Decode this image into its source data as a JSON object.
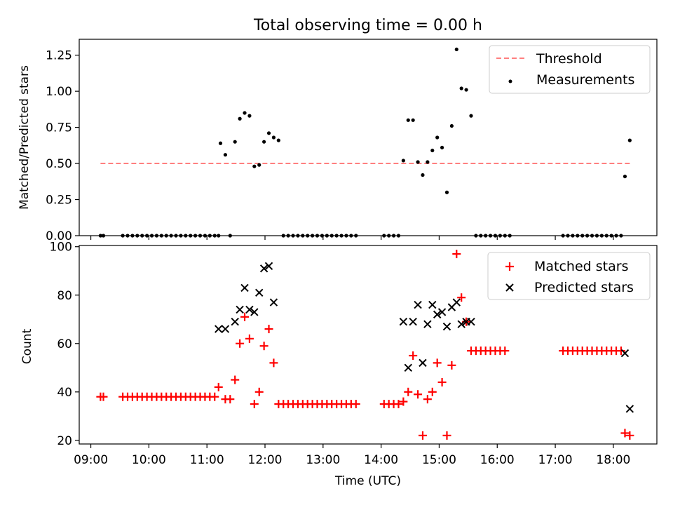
{
  "chart_data": [
    {
      "type": "scatter",
      "title": "Total observing time = 0.00 h",
      "ylabel": "Matched/Predicted stars",
      "xlabel": "",
      "x_range_hours": [
        8.8,
        18.75
      ],
      "ylim": [
        0,
        1.36
      ],
      "y_ticks": [
        0,
        0.25,
        0.5,
        0.75,
        1.0,
        1.25
      ],
      "y_tick_labels": [
        "0.00",
        "0.25",
        "0.50",
        "0.75",
        "1.00",
        "1.25"
      ],
      "legend": [
        "Threshold",
        "Measurements"
      ],
      "legend_position": "top-right",
      "series": [
        {
          "name": "Threshold",
          "kind": "dashed-line",
          "color": "#ff7f7f",
          "x": [
            "09:10",
            "18:17"
          ],
          "y": [
            0.5,
            0.5
          ]
        },
        {
          "name": "Measurements",
          "kind": "points",
          "color": "#000000",
          "x": [
            "09:10",
            "09:13",
            "09:33",
            "09:38",
            "09:43",
            "09:48",
            "09:53",
            "09:58",
            "10:03",
            "10:08",
            "10:13",
            "10:18",
            "10:23",
            "10:28",
            "10:33",
            "10:38",
            "10:43",
            "10:48",
            "10:53",
            "10:58",
            "11:03",
            "11:08",
            "11:12",
            "11:14",
            "11:19",
            "11:24",
            "11:29",
            "11:34",
            "11:39",
            "11:44",
            "11:49",
            "11:54",
            "11:59",
            "12:04",
            "12:09",
            "12:14",
            "12:19",
            "12:24",
            "12:29",
            "12:34",
            "12:39",
            "12:44",
            "12:49",
            "12:54",
            "12:59",
            "13:04",
            "13:09",
            "13:14",
            "13:19",
            "13:24",
            "13:29",
            "13:34",
            "14:03",
            "14:08",
            "14:13",
            "14:18",
            "14:23",
            "14:28",
            "14:33",
            "14:38",
            "14:43",
            "14:48",
            "14:53",
            "14:58",
            "15:03",
            "15:08",
            "15:13",
            "15:18",
            "15:23",
            "15:28",
            "15:33",
            "15:38",
            "15:43",
            "15:48",
            "15:53",
            "15:58",
            "16:03",
            "16:08",
            "16:13",
            "17:08",
            "17:13",
            "17:18",
            "17:23",
            "17:28",
            "17:33",
            "17:38",
            "17:43",
            "17:48",
            "17:53",
            "17:58",
            "18:03",
            "18:08",
            "18:12",
            "18:17"
          ],
          "y": [
            0,
            0,
            0,
            0,
            0,
            0,
            0,
            0,
            0,
            0,
            0,
            0,
            0,
            0,
            0,
            0,
            0,
            0,
            0,
            0,
            0,
            0,
            0,
            0.64,
            0.56,
            0,
            0.65,
            0.81,
            0.85,
            0.83,
            0.48,
            0.49,
            0.65,
            0.71,
            0.68,
            0.66,
            0,
            0,
            0,
            0,
            0,
            0,
            0,
            0,
            0,
            0,
            0,
            0,
            0,
            0,
            0,
            0,
            0,
            0,
            0,
            0,
            0.52,
            0.8,
            0.8,
            0.51,
            0.42,
            0.51,
            0.59,
            0.68,
            0.61,
            0.3,
            0.76,
            1.29,
            1.02,
            1.01,
            0.83,
            0,
            0,
            0,
            0,
            0,
            0,
            0,
            0,
            0,
            0,
            0,
            0,
            0,
            0,
            0,
            0,
            0,
            0,
            0,
            0,
            0,
            0.41,
            0.66
          ]
        }
      ]
    },
    {
      "type": "scatter",
      "title": "",
      "ylabel": "Count",
      "xlabel": "Time (UTC)",
      "x_range_hours": [
        8.8,
        18.75
      ],
      "x_ticks": [
        "09:00",
        "10:00",
        "11:00",
        "12:00",
        "13:00",
        "14:00",
        "15:00",
        "16:00",
        "17:00",
        "18:00"
      ],
      "ylim": [
        18.5,
        100.5
      ],
      "y_ticks": [
        20,
        40,
        60,
        80,
        100
      ],
      "legend": [
        "Matched stars",
        "Predicted stars"
      ],
      "legend_position": "top-right",
      "series": [
        {
          "name": "Matched stars",
          "marker": "+",
          "color": "#ff0000",
          "x": [
            "09:10",
            "09:13",
            "09:33",
            "09:38",
            "09:43",
            "09:48",
            "09:53",
            "09:58",
            "10:03",
            "10:08",
            "10:13",
            "10:18",
            "10:23",
            "10:28",
            "10:33",
            "10:38",
            "10:43",
            "10:48",
            "10:53",
            "10:58",
            "11:03",
            "11:08",
            "11:12",
            "11:19",
            "11:24",
            "11:29",
            "11:34",
            "11:39",
            "11:44",
            "11:49",
            "11:54",
            "11:59",
            "12:04",
            "12:09",
            "12:14",
            "12:19",
            "12:24",
            "12:29",
            "12:34",
            "12:39",
            "12:44",
            "12:49",
            "12:54",
            "12:59",
            "13:04",
            "13:09",
            "13:14",
            "13:19",
            "13:24",
            "13:29",
            "13:34",
            "14:03",
            "14:08",
            "14:13",
            "14:18",
            "14:23",
            "14:28",
            "14:33",
            "14:38",
            "14:43",
            "14:48",
            "14:53",
            "14:58",
            "15:03",
            "15:08",
            "15:13",
            "15:18",
            "15:23",
            "15:28",
            "15:33",
            "15:38",
            "15:43",
            "15:48",
            "15:53",
            "15:58",
            "16:03",
            "16:08",
            "17:08",
            "17:13",
            "17:18",
            "17:23",
            "17:28",
            "17:33",
            "17:38",
            "17:43",
            "17:48",
            "17:53",
            "17:58",
            "18:03",
            "18:08",
            "18:12",
            "18:17"
          ],
          "y": [
            38,
            38,
            38,
            38,
            38,
            38,
            38,
            38,
            38,
            38,
            38,
            38,
            38,
            38,
            38,
            38,
            38,
            38,
            38,
            38,
            38,
            38,
            42,
            37,
            37,
            45,
            60,
            71,
            62,
            35,
            40,
            59,
            66,
            52,
            35,
            35,
            35,
            35,
            35,
            35,
            35,
            35,
            35,
            35,
            35,
            35,
            35,
            35,
            35,
            35,
            35,
            35,
            35,
            35,
            35,
            36,
            40,
            55,
            39,
            22,
            37,
            40,
            52,
            44,
            22,
            51,
            97,
            79,
            69,
            57,
            57,
            57,
            57,
            57,
            57,
            57,
            57,
            57,
            57,
            57,
            57,
            57,
            57,
            57,
            57,
            57,
            57,
            57,
            57,
            57,
            23,
            22
          ]
        },
        {
          "name": "Predicted stars",
          "marker": "x",
          "color": "#000000",
          "x": [
            "11:12",
            "11:19",
            "11:29",
            "11:34",
            "11:39",
            "11:44",
            "11:49",
            "11:54",
            "11:59",
            "12:04",
            "12:09",
            "14:23",
            "14:28",
            "14:33",
            "14:38",
            "14:43",
            "14:48",
            "14:53",
            "14:58",
            "15:03",
            "15:08",
            "15:13",
            "15:18",
            "15:23",
            "15:28",
            "15:33",
            "18:12",
            "18:17"
          ],
          "y": [
            66,
            66,
            69,
            74,
            83,
            74,
            73,
            81,
            91,
            92,
            77,
            69,
            50,
            69,
            76,
            52,
            68,
            76,
            72,
            73,
            67,
            75,
            77,
            68,
            69,
            69,
            56,
            33
          ]
        }
      ]
    }
  ]
}
